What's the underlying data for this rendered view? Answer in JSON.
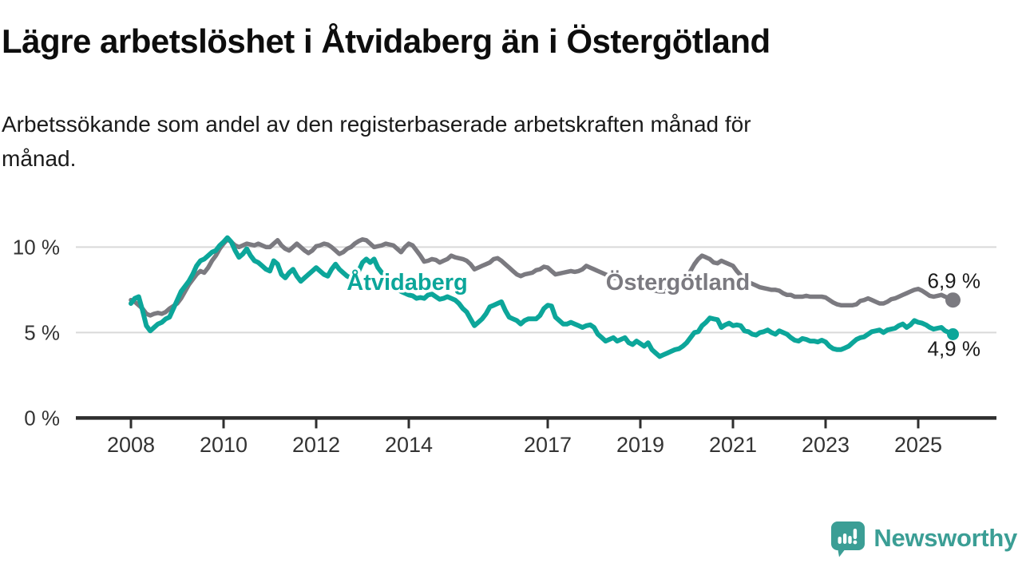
{
  "header": {
    "title": "Lägre arbetslöshet i Åtvidaberg än i Östergötland",
    "subtitle": "Arbetssökande som andel av den registerbaserade arbetskraften månad för\nmånad."
  },
  "footer": {
    "brand": "Newsworthy",
    "brand_color": "#3b9e95",
    "logo_icon": "speech-bubble-bar-chart-icon"
  },
  "chart_data": {
    "type": "line",
    "title": "",
    "xlabel": "",
    "ylabel": "",
    "x_start": 2008,
    "x_step": "1 month",
    "x_end": 2025.75,
    "ylim": [
      0,
      11.6
    ],
    "grid": "horizontal",
    "x_ticks": [
      2008,
      2010,
      2012,
      2014,
      2017,
      2019,
      2021,
      2023,
      2025
    ],
    "y_ticks": [
      {
        "value": 10,
        "label": "10 %"
      },
      {
        "value": 5,
        "label": "5 %"
      },
      {
        "value": 0,
        "label": "0 %"
      }
    ],
    "series": [
      {
        "name": "Åtvidaberg",
        "color": "#0ca69a",
        "end_label": "4,9 %",
        "last_value": 4.9,
        "values": [
          6.7,
          7.0,
          7.1,
          6.3,
          5.4,
          5.1,
          5.3,
          5.5,
          5.6,
          5.8,
          5.9,
          6.4,
          6.9,
          7.4,
          7.7,
          8.0,
          8.4,
          8.9,
          9.2,
          9.3,
          9.5,
          9.7,
          9.8,
          10.1,
          10.3,
          10.55,
          10.3,
          9.8,
          9.4,
          9.6,
          9.9,
          9.5,
          9.2,
          9.1,
          8.9,
          8.7,
          8.6,
          9.2,
          9.0,
          8.4,
          8.2,
          8.5,
          8.7,
          8.3,
          8.0,
          8.2,
          8.4,
          8.6,
          8.8,
          8.6,
          8.4,
          8.3,
          8.7,
          9.0,
          8.7,
          8.5,
          8.3,
          8.2,
          8.1,
          8.6,
          9.1,
          9.3,
          9.1,
          9.3,
          8.8,
          8.5,
          8.3,
          8.0,
          7.8,
          7.6,
          7.4,
          7.3,
          7.2,
          7.15,
          7.0,
          7.05,
          7.0,
          7.2,
          7.25,
          7.1,
          6.95,
          7.0,
          7.1,
          7.0,
          6.9,
          6.7,
          6.4,
          6.2,
          5.8,
          5.4,
          5.6,
          5.8,
          6.1,
          6.5,
          6.6,
          6.7,
          6.8,
          6.3,
          5.9,
          5.8,
          5.7,
          5.5,
          5.7,
          5.8,
          5.8,
          5.8,
          6.0,
          6.4,
          6.6,
          6.55,
          5.9,
          5.7,
          5.5,
          5.5,
          5.6,
          5.5,
          5.4,
          5.3,
          5.4,
          5.45,
          5.3,
          4.9,
          4.7,
          4.5,
          4.6,
          4.7,
          4.5,
          4.6,
          4.7,
          4.4,
          4.3,
          4.5,
          4.35,
          4.2,
          4.4,
          4.0,
          3.8,
          3.6,
          3.7,
          3.8,
          3.9,
          4.0,
          4.05,
          4.2,
          4.4,
          4.7,
          5.0,
          5.05,
          5.4,
          5.6,
          5.85,
          5.8,
          5.75,
          5.3,
          5.45,
          5.55,
          5.4,
          5.45,
          5.4,
          5.1,
          5.05,
          4.9,
          4.85,
          5.0,
          5.05,
          5.15,
          5.0,
          4.9,
          5.1,
          5.0,
          4.9,
          4.7,
          4.55,
          4.5,
          4.65,
          4.6,
          4.5,
          4.5,
          4.45,
          4.55,
          4.45,
          4.2,
          4.05,
          4.0,
          4.0,
          4.1,
          4.2,
          4.4,
          4.6,
          4.7,
          4.75,
          4.9,
          5.05,
          5.1,
          5.15,
          5.0,
          5.15,
          5.2,
          5.25,
          5.4,
          5.5,
          5.3,
          5.45,
          5.7,
          5.6,
          5.55,
          5.45,
          5.3,
          5.2,
          5.25,
          5.3,
          5.1,
          5.0,
          4.9
        ]
      },
      {
        "name": "Östergötland",
        "color": "#7b7a80",
        "end_label": "6,9 %",
        "last_value": 6.9,
        "values": [
          6.9,
          6.8,
          6.6,
          6.4,
          6.1,
          6.0,
          6.1,
          6.15,
          6.1,
          6.2,
          6.4,
          6.55,
          6.7,
          7.0,
          7.4,
          7.8,
          8.1,
          8.4,
          8.6,
          8.5,
          8.8,
          9.2,
          9.5,
          9.9,
          10.2,
          10.45,
          10.3,
          10.1,
          10.0,
          10.1,
          10.2,
          10.15,
          10.1,
          10.2,
          10.1,
          10.0,
          10.0,
          10.2,
          10.4,
          10.1,
          9.9,
          9.8,
          10.0,
          10.2,
          10.0,
          9.8,
          9.65,
          9.8,
          10.05,
          10.1,
          10.2,
          10.15,
          10.0,
          9.8,
          9.6,
          9.7,
          9.9,
          10.0,
          10.2,
          10.35,
          10.45,
          10.4,
          10.2,
          10.0,
          10.05,
          10.1,
          10.2,
          10.15,
          10.1,
          9.9,
          9.7,
          10.0,
          10.2,
          10.1,
          9.8,
          9.5,
          9.15,
          9.2,
          9.3,
          9.25,
          9.1,
          9.2,
          9.3,
          9.5,
          9.4,
          9.35,
          9.3,
          9.2,
          9.0,
          8.7,
          8.8,
          8.9,
          9.0,
          9.1,
          9.3,
          9.35,
          9.2,
          9.0,
          8.8,
          8.6,
          8.4,
          8.3,
          8.4,
          8.45,
          8.5,
          8.65,
          8.7,
          8.85,
          8.8,
          8.6,
          8.4,
          8.45,
          8.5,
          8.55,
          8.6,
          8.55,
          8.6,
          8.7,
          8.9,
          8.8,
          8.7,
          8.6,
          8.5,
          8.4,
          8.3,
          8.2,
          8.2,
          8.1,
          8.0,
          7.9,
          7.9,
          7.85,
          7.8,
          7.7,
          7.6,
          7.5,
          7.45,
          7.4,
          7.4,
          7.45,
          7.5,
          7.5,
          7.6,
          7.8,
          8.1,
          8.6,
          9.0,
          9.3,
          9.5,
          9.4,
          9.3,
          9.1,
          9.05,
          9.2,
          9.1,
          9.0,
          8.9,
          8.6,
          8.35,
          8.1,
          7.95,
          7.85,
          7.75,
          7.65,
          7.6,
          7.55,
          7.5,
          7.5,
          7.45,
          7.3,
          7.2,
          7.2,
          7.1,
          7.1,
          7.1,
          7.15,
          7.1,
          7.1,
          7.1,
          7.1,
          7.05,
          6.9,
          6.75,
          6.65,
          6.6,
          6.6,
          6.6,
          6.6,
          6.65,
          6.85,
          6.9,
          7.0,
          6.9,
          6.8,
          6.7,
          6.7,
          6.8,
          6.95,
          7.0,
          7.1,
          7.2,
          7.3,
          7.4,
          7.5,
          7.55,
          7.45,
          7.3,
          7.15,
          7.1,
          7.15,
          7.2,
          7.1,
          7.0,
          6.9
        ]
      }
    ]
  }
}
